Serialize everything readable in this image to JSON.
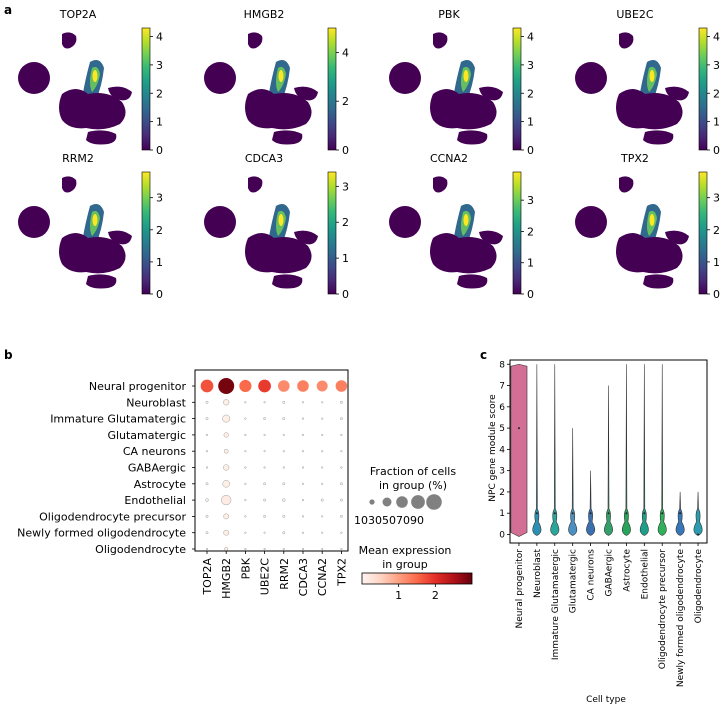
{
  "panel_labels": {
    "a": "a",
    "b": "b",
    "c": "c"
  },
  "colors": {
    "viridis": [
      "#440154",
      "#482878",
      "#3e4989",
      "#31688e",
      "#26828e",
      "#1f9e89",
      "#35b779",
      "#6ece58",
      "#b5de2b",
      "#fde725"
    ],
    "reds": [
      "#fff5f0",
      "#fdd5c4",
      "#fca082",
      "#fb6a4a",
      "#e32f27",
      "#b11218",
      "#67000d"
    ],
    "fraction_marker": "#808080",
    "violin_colors": [
      "#d36f94",
      "#2e8fb4",
      "#2aa79a",
      "#4c8fc0",
      "#3a6fb0",
      "#33a06b",
      "#27a35a",
      "#1f9e89",
      "#2fb05a",
      "#3776b8",
      "#2c9cb0",
      "#3aa0c8"
    ]
  },
  "chart_data": [
    {
      "type": "umap_feature_plots",
      "genes": [
        {
          "name": "TOP2A",
          "colorbar_max": 4.3,
          "ticks": [
            "0",
            "1",
            "2",
            "3",
            "4"
          ],
          "tick_values": [
            0,
            1,
            2,
            3,
            4
          ]
        },
        {
          "name": "HMGB2",
          "colorbar_max": 5.0,
          "ticks": [
            "0",
            "2",
            "4"
          ],
          "tick_values": [
            0,
            2,
            4
          ]
        },
        {
          "name": "PBK",
          "colorbar_max": 4.3,
          "ticks": [
            "0",
            "1",
            "2",
            "3",
            "4"
          ],
          "tick_values": [
            0,
            1,
            2,
            3,
            4
          ]
        },
        {
          "name": "UBE2C",
          "colorbar_max": 4.3,
          "ticks": [
            "0",
            "1",
            "2",
            "3",
            "4"
          ],
          "tick_values": [
            0,
            1,
            2,
            3,
            4
          ]
        },
        {
          "name": "RRM2",
          "colorbar_max": 3.8,
          "ticks": [
            "0",
            "1",
            "2",
            "3"
          ],
          "tick_values": [
            0,
            1,
            2,
            3
          ]
        },
        {
          "name": "CDCA3",
          "colorbar_max": 3.4,
          "ticks": [
            "0",
            "1",
            "2",
            "3"
          ],
          "tick_values": [
            0,
            1,
            2,
            3
          ]
        },
        {
          "name": "CCNA2",
          "colorbar_max": 3.9,
          "ticks": [
            "0",
            "1",
            "2",
            "3"
          ],
          "tick_values": [
            0,
            1,
            2,
            3
          ]
        },
        {
          "name": "TPX2",
          "colorbar_max": 3.8,
          "ticks": [
            "0",
            "1",
            "2",
            "3"
          ],
          "tick_values": [
            0,
            1,
            2,
            3
          ]
        }
      ]
    },
    {
      "type": "dotplot",
      "rows": [
        "Neural progenitor",
        "Neuroblast",
        "Immature Glutamatergic",
        "Glutamatergic",
        "CA neurons",
        "GABAergic",
        "Astrocyte",
        "Endothelial",
        "Oligodendrocyte precursor",
        "Newly formed oligodendrocyte",
        "Oligodendrocyte"
      ],
      "columns": [
        "TOP2A",
        "HMGB2",
        "PBK",
        "UBE2C",
        "RRM2",
        "CDCA3",
        "CCNA2",
        "TPX2"
      ],
      "fraction_percent": [
        [
          60,
          95,
          55,
          60,
          50,
          50,
          45,
          50
        ],
        [
          2,
          12,
          1,
          1,
          2,
          1,
          1,
          2
        ],
        [
          2,
          20,
          1,
          2,
          2,
          1,
          1,
          2
        ],
        [
          1,
          8,
          1,
          1,
          1,
          1,
          1,
          1
        ],
        [
          1,
          6,
          1,
          1,
          1,
          1,
          1,
          1
        ],
        [
          1,
          12,
          1,
          1,
          1,
          1,
          1,
          1
        ],
        [
          2,
          18,
          1,
          2,
          2,
          1,
          1,
          2
        ],
        [
          3,
          35,
          1,
          2,
          3,
          1,
          2,
          2
        ],
        [
          2,
          10,
          1,
          2,
          2,
          1,
          1,
          2
        ],
        [
          2,
          10,
          1,
          1,
          2,
          1,
          1,
          1
        ],
        [
          1,
          4,
          1,
          1,
          1,
          1,
          1,
          1
        ]
      ],
      "mean_expression": [
        [
          1.7,
          2.9,
          1.5,
          1.9,
          1.2,
          1.3,
          1.2,
          1.3
        ],
        [
          0.05,
          0.1,
          0.05,
          0.05,
          0.05,
          0.05,
          0.05,
          0.05
        ],
        [
          0.05,
          0.1,
          0.05,
          0.05,
          0.05,
          0.05,
          0.05,
          0.05
        ],
        [
          0.05,
          0.1,
          0.05,
          0.05,
          0.05,
          0.05,
          0.05,
          0.05
        ],
        [
          0.05,
          0.1,
          0.05,
          0.05,
          0.05,
          0.05,
          0.05,
          0.05
        ],
        [
          0.05,
          0.1,
          0.05,
          0.05,
          0.05,
          0.05,
          0.05,
          0.05
        ],
        [
          0.05,
          0.1,
          0.05,
          0.05,
          0.05,
          0.05,
          0.05,
          0.05
        ],
        [
          0.05,
          0.15,
          0.05,
          0.05,
          0.05,
          0.05,
          0.05,
          0.05
        ],
        [
          0.05,
          0.1,
          0.05,
          0.05,
          0.05,
          0.05,
          0.05,
          0.05
        ],
        [
          0.05,
          0.1,
          0.05,
          0.05,
          0.05,
          0.05,
          0.05,
          0.05
        ],
        [
          0.05,
          0.1,
          0.05,
          0.05,
          0.05,
          0.05,
          0.05,
          0.05
        ]
      ],
      "size_legend": {
        "title_line1": "Fraction of cells",
        "title_line2": "in group (%)",
        "values": [
          10,
          30,
          50,
          70,
          90
        ],
        "labels": [
          "10",
          "30",
          "50",
          "70",
          "90"
        ]
      },
      "color_legend": {
        "title_line1": "Mean expression",
        "title_line2": "in group",
        "range": [
          0,
          3
        ],
        "ticks": [
          "1",
          "2"
        ],
        "tick_values": [
          1,
          2
        ]
      }
    },
    {
      "type": "violin",
      "categories": [
        "Neural progenitor",
        "Neuroblast",
        "Immature Glutamatergic",
        "Glutamatergic",
        "CA neurons",
        "GABAergic",
        "Astrocyte",
        "Endothelial",
        "Oligodendrocyte precursor",
        "Newly formed oligodendrocyte",
        "Oligodendrocyte"
      ],
      "max_values": [
        8,
        8,
        8,
        5,
        3,
        7,
        8,
        8,
        8,
        2,
        2
      ],
      "median_values": [
        5,
        1,
        1,
        1,
        1,
        1,
        1,
        1,
        1,
        1,
        0
      ],
      "ylabel": "NPC gene module score",
      "xlabel": "Cell type",
      "ylim": [
        -0.4,
        8.2
      ],
      "yticks": [
        "0",
        "1",
        "2",
        "3",
        "4",
        "5",
        "6",
        "7",
        "8"
      ],
      "ytick_values": [
        0,
        1,
        2,
        3,
        4,
        5,
        6,
        7,
        8
      ]
    }
  ]
}
